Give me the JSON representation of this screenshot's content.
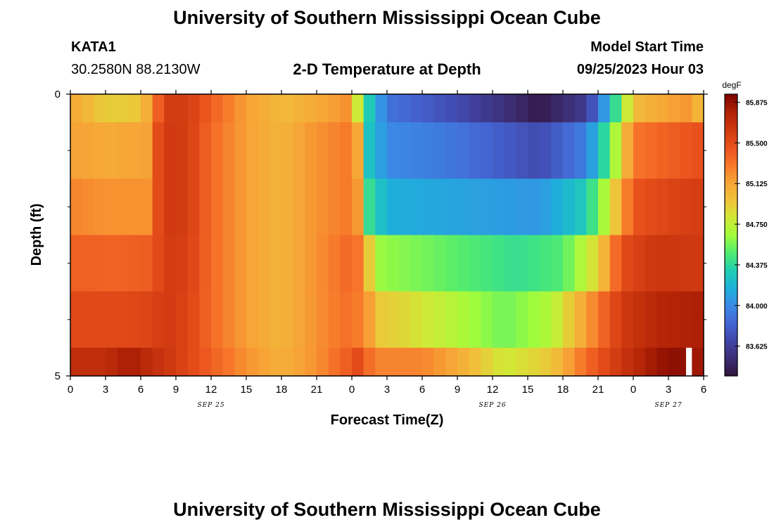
{
  "header": {
    "title": "University of Southern Mississippi Ocean Cube",
    "station": "KATA1",
    "coords": "30.2580N  88.2130W",
    "subtitle": "2-D Temperature at Depth",
    "model_label": "Model Start Time",
    "model_time": "09/25/2023 Hour 03"
  },
  "footer": {
    "title": "University of Southern Mississippi Ocean Cube"
  },
  "colors": {
    "colormap": [
      "#30123b",
      "#3d2e74",
      "#4145a8",
      "#4466d3",
      "#3a8be6",
      "#1cb2d9",
      "#20cfb0",
      "#52ec6f",
      "#a2fc3c",
      "#d1e835",
      "#f0c13a",
      "#f7a436",
      "#f7762a",
      "#e9511c",
      "#cf3910",
      "#af2106",
      "#7a0403"
    ],
    "gap": "#ffffff"
  },
  "chart_data": {
    "type": "heatmap",
    "xlabel": "Forecast Time(Z)",
    "ylabel": "Depth (ft)",
    "x_range_hours": [
      0,
      54
    ],
    "ylim": [
      0,
      5
    ],
    "x_ticks": [
      {
        "h": 0,
        "label": "0"
      },
      {
        "h": 3,
        "label": "3"
      },
      {
        "h": 6,
        "label": "6"
      },
      {
        "h": 9,
        "label": "9"
      },
      {
        "h": 12,
        "label": "12"
      },
      {
        "h": 15,
        "label": "15"
      },
      {
        "h": 18,
        "label": "18"
      },
      {
        "h": 21,
        "label": "21"
      },
      {
        "h": 24,
        "label": "0"
      },
      {
        "h": 27,
        "label": "3"
      },
      {
        "h": 30,
        "label": "6"
      },
      {
        "h": 33,
        "label": "9"
      },
      {
        "h": 36,
        "label": "12"
      },
      {
        "h": 39,
        "label": "15"
      },
      {
        "h": 42,
        "label": "18"
      },
      {
        "h": 45,
        "label": "21"
      },
      {
        "h": 48,
        "label": "0"
      },
      {
        "h": 51,
        "label": "3"
      },
      {
        "h": 54,
        "label": "6"
      }
    ],
    "date_labels": [
      {
        "h": 12,
        "label": "SEP 25"
      },
      {
        "h": 36,
        "label": "SEP 26"
      },
      {
        "h": 51,
        "label": "SEP 27"
      }
    ],
    "y_ticks": [
      {
        "v": 0,
        "label": "0"
      },
      {
        "v": 5,
        "label": "5"
      }
    ],
    "y_minor_ticks": [
      1,
      2,
      3,
      4
    ],
    "colorbar": {
      "unit": "degF",
      "min": 83.35,
      "max": 85.95,
      "ticks": [
        85.875,
        85.5,
        85.125,
        84.75,
        84.375,
        84.0,
        83.625
      ],
      "tick_labels": [
        "85.875",
        "85.500",
        "85.125",
        "84.750",
        "84.375",
        "84.000",
        "83.625"
      ]
    },
    "time_step_hours": 1,
    "layers": [
      {
        "depth_top": 0.0,
        "depth_bottom": 0.5,
        "keys": [
          [
            0,
            85.13
          ],
          [
            3,
            84.92
          ],
          [
            6,
            84.95
          ],
          [
            7,
            85.2
          ],
          [
            8,
            85.6
          ],
          [
            10,
            85.6
          ],
          [
            12,
            85.4
          ],
          [
            15,
            85.15
          ],
          [
            18,
            85.02
          ],
          [
            21,
            85.1
          ],
          [
            23.5,
            85.2
          ],
          [
            24.5,
            84.8
          ],
          [
            25.5,
            84.3
          ],
          [
            27,
            83.9
          ],
          [
            33,
            83.7
          ],
          [
            40,
            83.4
          ],
          [
            44,
            83.6
          ],
          [
            46,
            84.2
          ],
          [
            48,
            85.0
          ],
          [
            50,
            85.1
          ],
          [
            53,
            85.2
          ],
          [
            54,
            84.9
          ]
        ]
      },
      {
        "depth_top": 0.5,
        "depth_bottom": 1.5,
        "keys": [
          [
            0,
            85.15
          ],
          [
            3,
            85.1
          ],
          [
            7,
            85.15
          ],
          [
            7.5,
            85.5
          ],
          [
            8,
            85.62
          ],
          [
            10,
            85.6
          ],
          [
            12,
            85.35
          ],
          [
            15,
            85.15
          ],
          [
            18,
            85.05
          ],
          [
            21,
            85.2
          ],
          [
            24,
            85.3
          ],
          [
            24.8,
            85.0
          ],
          [
            25.5,
            84.25
          ],
          [
            27,
            84.0
          ],
          [
            33,
            83.9
          ],
          [
            40,
            83.7
          ],
          [
            44,
            83.95
          ],
          [
            46,
            84.5
          ],
          [
            48,
            85.3
          ],
          [
            51,
            85.4
          ],
          [
            54,
            85.48
          ]
        ]
      },
      {
        "depth_top": 1.5,
        "depth_bottom": 2.5,
        "keys": [
          [
            0,
            85.25
          ],
          [
            3,
            85.2
          ],
          [
            7,
            85.2
          ],
          [
            7.5,
            85.5
          ],
          [
            8,
            85.62
          ],
          [
            10,
            85.6
          ],
          [
            12,
            85.35
          ],
          [
            15,
            85.15
          ],
          [
            18,
            85.05
          ],
          [
            21,
            85.2
          ],
          [
            24,
            85.3
          ],
          [
            25,
            85.05
          ],
          [
            25.5,
            84.4
          ],
          [
            27,
            84.15
          ],
          [
            33,
            84.1
          ],
          [
            40,
            84.05
          ],
          [
            44,
            84.3
          ],
          [
            46,
            84.8
          ],
          [
            48,
            85.45
          ],
          [
            51,
            85.55
          ],
          [
            54,
            85.6
          ]
        ]
      },
      {
        "depth_top": 2.5,
        "depth_bottom": 3.5,
        "keys": [
          [
            0,
            85.4
          ],
          [
            4,
            85.38
          ],
          [
            7,
            85.42
          ],
          [
            8,
            85.6
          ],
          [
            10,
            85.58
          ],
          [
            12,
            85.35
          ],
          [
            15,
            85.15
          ],
          [
            18,
            85.05
          ],
          [
            21,
            85.2
          ],
          [
            24,
            85.38
          ],
          [
            25.2,
            85.2
          ],
          [
            25.8,
            84.65
          ],
          [
            27,
            84.62
          ],
          [
            33,
            84.5
          ],
          [
            38,
            84.4
          ],
          [
            42,
            84.48
          ],
          [
            45,
            84.9
          ],
          [
            47,
            85.5
          ],
          [
            50,
            85.65
          ],
          [
            54,
            85.62
          ]
        ]
      },
      {
        "depth_top": 3.5,
        "depth_bottom": 4.5,
        "keys": [
          [
            0,
            85.52
          ],
          [
            5,
            85.52
          ],
          [
            7,
            85.55
          ],
          [
            8,
            85.62
          ],
          [
            10,
            85.55
          ],
          [
            12,
            85.35
          ],
          [
            15,
            85.15
          ],
          [
            18,
            85.05
          ],
          [
            21,
            85.2
          ],
          [
            24,
            85.35
          ],
          [
            25.5,
            85.15
          ],
          [
            26,
            84.95
          ],
          [
            28,
            84.9
          ],
          [
            33,
            84.7
          ],
          [
            37,
            84.55
          ],
          [
            41,
            84.7
          ],
          [
            43,
            85.0
          ],
          [
            45,
            85.3
          ],
          [
            47,
            85.62
          ],
          [
            50,
            85.75
          ],
          [
            54,
            85.8
          ]
        ]
      },
      {
        "depth_top": 4.5,
        "depth_bottom": 5.0,
        "keys": [
          [
            0,
            85.7
          ],
          [
            3,
            85.7
          ],
          [
            5,
            85.82
          ],
          [
            6,
            85.75
          ],
          [
            9,
            85.6
          ],
          [
            12,
            85.4
          ],
          [
            15,
            85.2
          ],
          [
            18,
            85.08
          ],
          [
            21,
            85.2
          ],
          [
            23.5,
            85.4
          ],
          [
            24.5,
            85.5
          ],
          [
            26,
            85.25
          ],
          [
            30,
            85.25
          ],
          [
            33,
            85.1
          ],
          [
            37,
            84.8
          ],
          [
            41,
            84.95
          ],
          [
            44,
            85.35
          ],
          [
            47,
            85.65
          ],
          [
            50,
            85.85
          ],
          [
            52,
            85.9
          ],
          [
            54,
            85.82
          ]
        ]
      }
    ],
    "blank_cells": [
      {
        "h": 52.5,
        "depth_top": 4.5,
        "depth_bottom": 5.0
      }
    ]
  }
}
